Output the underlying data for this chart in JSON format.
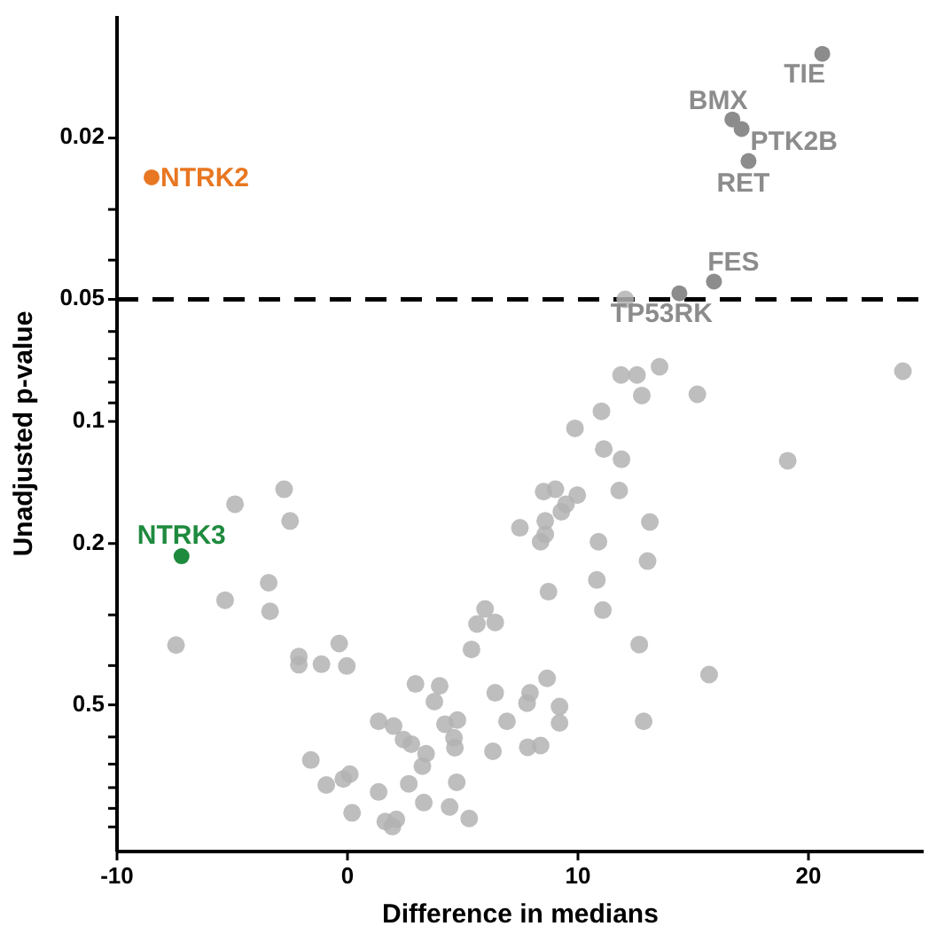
{
  "chart_data": {
    "type": "scatter",
    "xlabel": "Difference in medians",
    "ylabel": "Unadjusted p-value",
    "log": "y",
    "xlim": [
      -10,
      25
    ],
    "xticks": [
      -10,
      0,
      10,
      20
    ],
    "ylim": [
      1.15,
      0.01
    ],
    "yticks": [
      0.02,
      {
        "value": 0.03,
        "label": null
      },
      {
        "value": 0.04,
        "label": null
      },
      0.05,
      {
        "value": 0.06,
        "label": null
      },
      {
        "value": 0.07,
        "label": null
      },
      {
        "value": 0.08,
        "label": null
      },
      {
        "value": 0.09,
        "label": null
      },
      0.1,
      0.2,
      {
        "value": 0.3,
        "label": null
      },
      {
        "value": 0.4,
        "label": null
      },
      0.5,
      {
        "value": 0.6,
        "label": null
      },
      {
        "value": 0.7,
        "label": null
      },
      {
        "value": 0.8,
        "label": null
      },
      {
        "value": 0.9,
        "label": null
      },
      {
        "value": 1.0,
        "label": null
      }
    ],
    "marker": "circle",
    "ref_lines": [
      {
        "axis": "y",
        "value": 0.05,
        "label": null,
        "line_style": "dashed",
        "color": "#000000"
      }
    ],
    "series": [
      {
        "color": "#b3b3b3",
        "x": [
          -4.88,
          -2.75,
          -2.49,
          -5.31,
          -3.42,
          -3.36,
          -7.44,
          -2.11,
          -2.11,
          -1.13,
          -0.36,
          -0.03,
          2.95,
          4.0,
          3.77,
          5.97,
          5.62,
          6.41,
          5.38,
          6.41,
          1.35,
          2.0,
          2.43,
          2.77,
          4.23,
          4.77,
          4.62,
          4.66,
          3.41,
          3.25,
          -1.59,
          -0.92,
          -0.18,
          0.1,
          1.35,
          2.66,
          4.74,
          6.31,
          6.92,
          0.2,
          1.64,
          2.12,
          1.95,
          3.31,
          4.43,
          5.28,
          12.05,
          11.87,
          12.56,
          13.54,
          12.77,
          15.18,
          24.1,
          11.02,
          9.87,
          11.12,
          11.89,
          19.1,
          11.79,
          8.51,
          9.02,
          9.97,
          9.48,
          9.28,
          7.48,
          8.58,
          8.58,
          8.38,
          13.12,
          10.89,
          13.02,
          10.82,
          8.72,
          11.08,
          12.66,
          15.69,
          8.66,
          7.92,
          7.79,
          9.2,
          9.2,
          12.85,
          7.82,
          8.38
        ],
        "values": [
          0.16,
          0.147,
          0.176,
          0.276,
          0.25,
          0.294,
          0.356,
          0.38,
          0.398,
          0.397,
          0.353,
          0.401,
          0.444,
          0.449,
          0.491,
          0.29,
          0.316,
          0.313,
          0.365,
          0.467,
          0.549,
          0.564,
          0.609,
          0.625,
          0.558,
          0.545,
          0.603,
          0.638,
          0.66,
          0.708,
          0.684,
          0.788,
          0.762,
          0.741,
          0.82,
          0.783,
          0.776,
          0.651,
          0.549,
          0.923,
          0.97,
          0.958,
          0.998,
          0.871,
          0.893,
          0.953,
          0.05,
          0.0768,
          0.0768,
          0.0733,
          0.0863,
          0.0857,
          0.0752,
          0.0944,
          0.104,
          0.117,
          0.124,
          0.125,
          0.148,
          0.149,
          0.147,
          0.152,
          0.16,
          0.167,
          0.183,
          0.176,
          0.19,
          0.198,
          0.177,
          0.198,
          0.221,
          0.246,
          0.263,
          0.292,
          0.355,
          0.421,
          0.43,
          0.467,
          0.495,
          0.505,
          0.554,
          0.549,
          0.636,
          0.63
        ]
      },
      {
        "name": "NTRK2",
        "color": "#e87722",
        "x": [
          -8.5
        ],
        "values": [
          0.025
        ]
      },
      {
        "name": "NTRK3",
        "color": "#1e8a3e",
        "x": [
          -7.2
        ],
        "values": [
          0.215
        ]
      },
      {
        "name": "TIE",
        "color": "#8c8c8c",
        "x": [
          20.6
        ],
        "values": [
          0.0124
        ]
      },
      {
        "name": "BMX",
        "color": "#8c8c8c",
        "x": [
          16.7
        ],
        "values": [
          0.018
        ]
      },
      {
        "name": "PTK2B",
        "color": "#8c8c8c",
        "x": [
          17.1
        ],
        "values": [
          0.019
        ]
      },
      {
        "name": "RET",
        "color": "#8c8c8c",
        "x": [
          17.4
        ],
        "values": [
          0.0228
        ]
      },
      {
        "name": "FES",
        "color": "#8c8c8c",
        "x": [
          15.9
        ],
        "values": [
          0.0452
        ]
      },
      {
        "name": "TP53RK",
        "color": "#8c8c8c",
        "x": [
          14.4
        ],
        "values": [
          0.0483
        ]
      }
    ]
  }
}
